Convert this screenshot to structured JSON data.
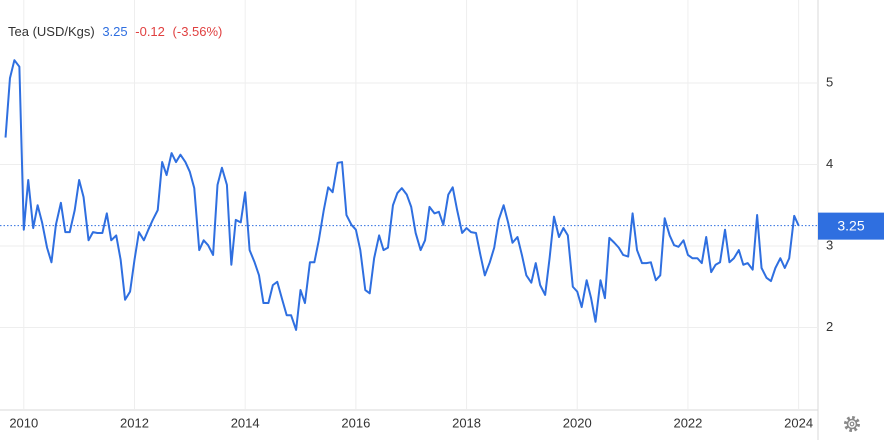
{
  "chart_data": {
    "type": "line",
    "title": "Tea (USD/Kgs)",
    "last_value": "3.25",
    "change": "-0.12",
    "change_pct": "(-3.56%)",
    "x": [
      2009.67,
      2009.75,
      2009.83,
      2009.92,
      2010,
      2010.08,
      2010.17,
      2010.25,
      2010.33,
      2010.42,
      2010.5,
      2010.58,
      2010.67,
      2010.75,
      2010.83,
      2010.92,
      2011,
      2011.08,
      2011.17,
      2011.25,
      2011.33,
      2011.42,
      2011.5,
      2011.58,
      2011.67,
      2011.75,
      2011.83,
      2011.92,
      2012,
      2012.08,
      2012.17,
      2012.25,
      2012.33,
      2012.42,
      2012.5,
      2012.58,
      2012.67,
      2012.75,
      2012.83,
      2012.92,
      2013,
      2013.08,
      2013.17,
      2013.25,
      2013.33,
      2013.42,
      2013.5,
      2013.58,
      2013.67,
      2013.75,
      2013.83,
      2013.92,
      2014,
      2014.08,
      2014.17,
      2014.25,
      2014.33,
      2014.42,
      2014.5,
      2014.58,
      2014.67,
      2014.75,
      2014.83,
      2014.92,
      2015,
      2015.08,
      2015.17,
      2015.25,
      2015.33,
      2015.42,
      2015.5,
      2015.58,
      2015.67,
      2015.75,
      2015.83,
      2015.92,
      2016,
      2016.08,
      2016.17,
      2016.25,
      2016.33,
      2016.42,
      2016.5,
      2016.58,
      2016.67,
      2016.75,
      2016.83,
      2016.92,
      2017,
      2017.08,
      2017.17,
      2017.25,
      2017.33,
      2017.42,
      2017.5,
      2017.58,
      2017.67,
      2017.75,
      2017.83,
      2017.92,
      2018,
      2018.08,
      2018.17,
      2018.25,
      2018.33,
      2018.42,
      2018.5,
      2018.58,
      2018.67,
      2018.75,
      2018.83,
      2018.92,
      2019,
      2019.08,
      2019.17,
      2019.25,
      2019.33,
      2019.42,
      2019.5,
      2019.58,
      2019.67,
      2019.75,
      2019.83,
      2019.92,
      2020,
      2020.08,
      2020.17,
      2020.25,
      2020.33,
      2020.42,
      2020.5,
      2020.58,
      2020.67,
      2020.75,
      2020.83,
      2020.92,
      2021,
      2021.08,
      2021.17,
      2021.25,
      2021.33,
      2021.42,
      2021.5,
      2021.58,
      2021.67,
      2021.75,
      2021.83,
      2021.92,
      2022,
      2022.08,
      2022.17,
      2022.25,
      2022.33,
      2022.42,
      2022.5,
      2022.58,
      2022.67,
      2022.75,
      2022.83,
      2022.92,
      2023,
      2023.08,
      2023.17,
      2023.25,
      2023.33,
      2023.42,
      2023.5,
      2023.58,
      2023.67,
      2023.75,
      2023.83,
      2023.92,
      2024
    ],
    "series": [
      {
        "name": "Tea",
        "color": "#2f6fe0",
        "values": [
          4.33,
          5.06,
          5.28,
          5.2,
          3.2,
          3.81,
          3.22,
          3.5,
          3.29,
          2.98,
          2.8,
          3.26,
          3.53,
          3.17,
          3.17,
          3.44,
          3.81,
          3.6,
          3.07,
          3.17,
          3.16,
          3.16,
          3.4,
          3.07,
          3.13,
          2.83,
          2.34,
          2.44,
          2.83,
          3.17,
          3.07,
          3.2,
          3.32,
          3.44,
          4.03,
          3.87,
          4.14,
          4.03,
          4.12,
          4.03,
          3.91,
          3.71,
          2.95,
          3.07,
          3.01,
          2.89,
          3.75,
          3.96,
          3.75,
          2.77,
          3.32,
          3.29,
          3.66,
          2.95,
          2.8,
          2.64,
          2.3,
          2.3,
          2.52,
          2.56,
          2.34,
          2.15,
          2.15,
          1.97,
          2.46,
          2.3,
          2.8,
          2.8,
          3.07,
          3.44,
          3.72,
          3.66,
          4.02,
          4.03,
          3.38,
          3.26,
          3.2,
          2.95,
          2.46,
          2.42,
          2.85,
          3.13,
          2.95,
          2.98,
          3.5,
          3.65,
          3.71,
          3.63,
          3.48,
          3.16,
          2.95,
          3.07,
          3.48,
          3.4,
          3.42,
          3.26,
          3.63,
          3.72,
          3.44,
          3.16,
          3.22,
          3.17,
          3.16,
          2.89,
          2.64,
          2.8,
          2.98,
          3.32,
          3.5,
          3.29,
          3.04,
          3.11,
          2.89,
          2.64,
          2.55,
          2.79,
          2.52,
          2.4,
          2.85,
          3.36,
          3.11,
          3.22,
          3.13,
          2.5,
          2.44,
          2.25,
          2.58,
          2.36,
          2.07,
          2.58,
          2.36,
          3.1,
          3.04,
          2.98,
          2.89,
          2.87,
          3.4,
          2.95,
          2.79,
          2.79,
          2.8,
          2.58,
          2.64,
          3.34,
          3.13,
          3.01,
          2.99,
          3.07,
          2.89,
          2.85,
          2.85,
          2.79,
          3.11,
          2.68,
          2.77,
          2.8,
          3.2,
          2.8,
          2.85,
          2.95,
          2.77,
          2.79,
          2.71,
          3.38,
          2.73,
          2.61,
          2.57,
          2.73,
          2.85,
          2.73,
          2.85,
          3.37,
          3.25
        ]
      }
    ],
    "xlim": [
      2009.57,
      2024.35
    ],
    "xticks": [
      2010,
      2012,
      2014,
      2016,
      2018,
      2020,
      2022,
      2024
    ],
    "ylim": [
      1,
      6
    ],
    "yticks": [
      2,
      3,
      4,
      5
    ],
    "grid": true
  }
}
